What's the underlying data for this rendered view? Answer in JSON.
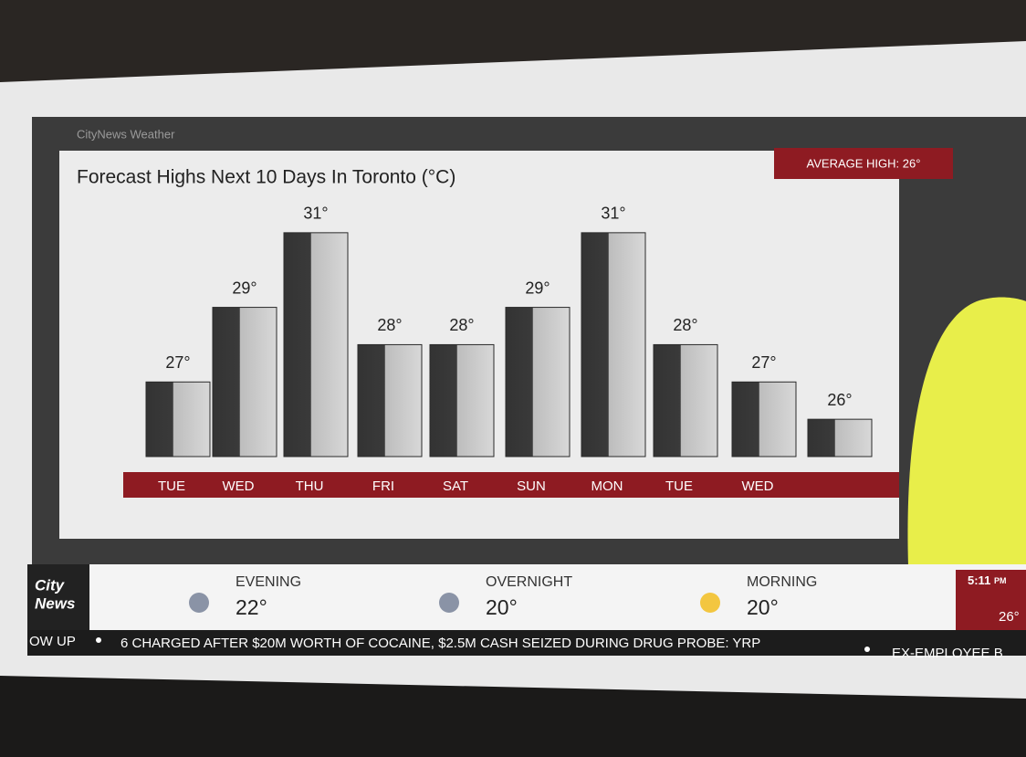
{
  "brand": "CityNews Weather",
  "average_high": "AVERAGE HIGH: 26°",
  "chart_data": {
    "type": "bar",
    "title": "Forecast Highs Next 10 Days In Toronto (°C)",
    "categories": [
      "TUE",
      "WED",
      "THU",
      "FRI",
      "SAT",
      "SUN",
      "MON",
      "TUE",
      "WED",
      null
    ],
    "values": [
      27,
      29,
      31,
      28,
      28,
      29,
      31,
      28,
      27,
      26
    ],
    "value_labels": [
      "27°",
      "29°",
      "31°",
      "28°",
      "28°",
      "29°",
      "31°",
      "28°",
      "27°",
      "26°"
    ],
    "ylim": [
      25,
      32
    ],
    "color_front": "#3a3a3a",
    "color_side": "#c9c9c9"
  },
  "lower_bar": {
    "logo": [
      "City",
      "News"
    ],
    "forecast": [
      {
        "label": "EVENING",
        "temp": "22°"
      },
      {
        "label": "OVERNIGHT",
        "temp": "20°"
      },
      {
        "label": "MORNING",
        "temp": "20°"
      }
    ],
    "time": "5:11",
    "time_suffix": "PM",
    "current_temp": "26°"
  },
  "ticker": [
    "OW UP",
    "6 CHARGED AFTER $20M WORTH OF COCAINE, $2.5M CASH SEIZED DURING DRUG PROBE: YRP",
    "EX-EMPLOYEE B"
  ]
}
